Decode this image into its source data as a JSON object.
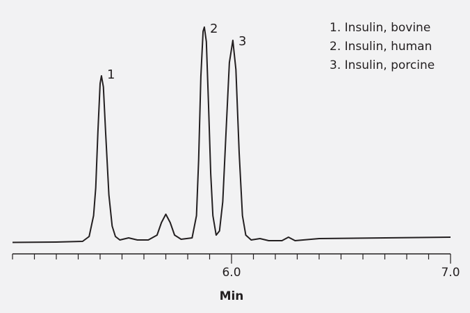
{
  "chart_data": {
    "type": "line",
    "xlabel": "Min",
    "xlim": [
      5.0,
      7.0
    ],
    "ylim": [
      0,
      320
    ],
    "xticks": [
      {
        "value": 6.0,
        "label": "6.0"
      },
      {
        "value": 7.0,
        "label": "7.0"
      }
    ],
    "xminor_ticks": [
      5.0,
      5.1,
      5.2,
      5.3,
      5.4,
      5.5,
      5.6,
      5.7,
      5.8,
      5.9,
      6.1,
      6.2,
      6.3,
      6.4,
      6.5,
      6.6,
      6.7,
      6.8,
      6.9
    ],
    "color": "#231f20",
    "peak_labels": [
      "1",
      "2",
      "3"
    ],
    "legend_entries": [
      "1. Insulin, bovine",
      "2. Insulin, human",
      "3. Insulin, porcine"
    ],
    "x": [
      5.0,
      5.2,
      5.32,
      5.35,
      5.37,
      5.38,
      5.39,
      5.4,
      5.406,
      5.415,
      5.425,
      5.44,
      5.455,
      5.47,
      5.49,
      5.53,
      5.57,
      5.62,
      5.66,
      5.68,
      5.7,
      5.72,
      5.74,
      5.77,
      5.82,
      5.84,
      5.85,
      5.86,
      5.87,
      5.876,
      5.885,
      5.895,
      5.905,
      5.915,
      5.93,
      5.945,
      5.96,
      5.975,
      5.99,
      6.006,
      6.02,
      6.035,
      6.05,
      6.065,
      6.09,
      6.13,
      6.17,
      6.23,
      6.26,
      6.29,
      6.4,
      7.0
    ],
    "values": [
      1.5,
      2,
      3,
      10,
      40,
      80,
      160,
      230,
      241,
      225,
      160,
      70,
      25,
      10,
      5,
      8,
      5,
      5,
      12,
      30,
      42,
      30,
      12,
      6,
      8,
      40,
      120,
      240,
      305,
      311,
      290,
      200,
      100,
      40,
      12,
      18,
      60,
      160,
      260,
      292,
      250,
      130,
      40,
      12,
      5,
      7,
      4,
      4,
      9,
      4,
      7,
      9
    ]
  }
}
